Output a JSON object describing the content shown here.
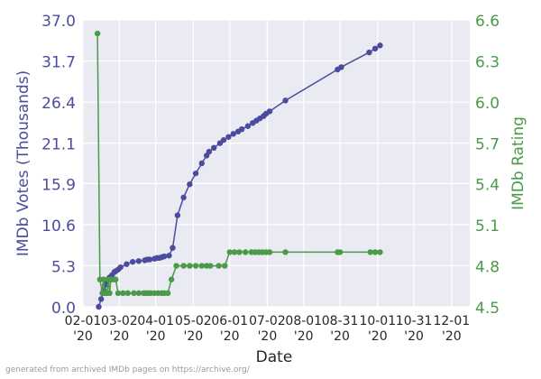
{
  "chart_data": {
    "type": "line",
    "xlabel": "Date",
    "ylabel_left": "IMDb Votes (Thousands)",
    "ylabel_right": "IMDb Rating",
    "x_range": [
      "2020-02-01",
      "2020-12-16"
    ],
    "y_left_range": [
      0.0,
      37.0
    ],
    "y_right_range": [
      4.5,
      6.6
    ],
    "y_left_ticks": [
      "0.0",
      "5.3",
      "10.6",
      "15.9",
      "21.1",
      "26.4",
      "31.7",
      "37.0"
    ],
    "y_right_ticks": [
      "4.5",
      "4.8",
      "5.1",
      "5.4",
      "5.7",
      "6.0",
      "6.3",
      "6.6"
    ],
    "x_ticks": [
      {
        "date": "2020-02-01",
        "label": "02-01",
        "year": "'20"
      },
      {
        "date": "2020-03-02",
        "label": "03-02",
        "year": "'20"
      },
      {
        "date": "2020-04-01",
        "label": "04-01",
        "year": "'20"
      },
      {
        "date": "2020-05-02",
        "label": "05-02",
        "year": "'20"
      },
      {
        "date": "2020-06-01",
        "label": "06-01",
        "year": "'20"
      },
      {
        "date": "2020-07-02",
        "label": "07-02",
        "year": "'20"
      },
      {
        "date": "2020-08-01",
        "label": "08-01",
        "year": "'20"
      },
      {
        "date": "2020-08-31",
        "label": "08-31",
        "year": "'20"
      },
      {
        "date": "2020-10-01",
        "label": "10-01",
        "year": "'20"
      },
      {
        "date": "2020-10-31",
        "label": "10-31",
        "year": "'20"
      },
      {
        "date": "2020-12-01",
        "label": "12-01",
        "year": "'20"
      }
    ],
    "grid": true,
    "series": [
      {
        "name": "IMDb Votes (Thousands)",
        "axis": "left",
        "color": "#4c4c9e",
        "points": [
          [
            "2020-02-14",
            0.0
          ],
          [
            "2020-02-16",
            1.0
          ],
          [
            "2020-02-18",
            2.2
          ],
          [
            "2020-02-19",
            2.8
          ],
          [
            "2020-02-20",
            2.9
          ],
          [
            "2020-02-21",
            3.3
          ],
          [
            "2020-02-22",
            3.6
          ],
          [
            "2020-02-23",
            3.8
          ],
          [
            "2020-02-25",
            4.1
          ],
          [
            "2020-02-27",
            4.5
          ],
          [
            "2020-02-28",
            4.6
          ],
          [
            "2020-03-01",
            4.8
          ],
          [
            "2020-03-03",
            5.1
          ],
          [
            "2020-03-08",
            5.5
          ],
          [
            "2020-03-13",
            5.8
          ],
          [
            "2020-03-18",
            5.9
          ],
          [
            "2020-03-23",
            6.0
          ],
          [
            "2020-03-25",
            6.1
          ],
          [
            "2020-03-27",
            6.1
          ],
          [
            "2020-03-31",
            6.2
          ],
          [
            "2020-04-02",
            6.3
          ],
          [
            "2020-04-04",
            6.3
          ],
          [
            "2020-04-06",
            6.4
          ],
          [
            "2020-04-08",
            6.5
          ],
          [
            "2020-04-12",
            6.6
          ],
          [
            "2020-04-15",
            7.6
          ],
          [
            "2020-04-19",
            11.8
          ],
          [
            "2020-04-24",
            14.1
          ],
          [
            "2020-04-29",
            15.8
          ],
          [
            "2020-05-04",
            17.2
          ],
          [
            "2020-05-09",
            18.5
          ],
          [
            "2020-05-13",
            19.5
          ],
          [
            "2020-05-15",
            20.0
          ],
          [
            "2020-05-19",
            20.5
          ],
          [
            "2020-05-24",
            21.1
          ],
          [
            "2020-05-27",
            21.5
          ],
          [
            "2020-05-31",
            21.9
          ],
          [
            "2020-06-04",
            22.3
          ],
          [
            "2020-06-08",
            22.6
          ],
          [
            "2020-06-11",
            22.9
          ],
          [
            "2020-06-16",
            23.3
          ],
          [
            "2020-06-20",
            23.7
          ],
          [
            "2020-06-23",
            24.0
          ],
          [
            "2020-06-26",
            24.3
          ],
          [
            "2020-06-29",
            24.6
          ],
          [
            "2020-07-01",
            24.9
          ],
          [
            "2020-07-04",
            25.2
          ],
          [
            "2020-07-17",
            26.6
          ],
          [
            "2020-08-29",
            30.6
          ],
          [
            "2020-09-01",
            30.9
          ],
          [
            "2020-09-24",
            32.8
          ],
          [
            "2020-09-29",
            33.3
          ],
          [
            "2020-10-03",
            33.7
          ]
        ]
      },
      {
        "name": "IMDb Rating",
        "axis": "right",
        "color": "#4a9a4a",
        "points": [
          [
            "2020-02-13",
            6.5
          ],
          [
            "2020-02-15",
            4.7
          ],
          [
            "2020-02-17",
            4.6
          ],
          [
            "2020-02-18",
            4.7
          ],
          [
            "2020-02-19",
            4.6
          ],
          [
            "2020-02-20",
            4.6
          ],
          [
            "2020-02-21",
            4.6
          ],
          [
            "2020-02-22",
            4.7
          ],
          [
            "2020-02-23",
            4.6
          ],
          [
            "2020-02-24",
            4.7
          ],
          [
            "2020-02-26",
            4.7
          ],
          [
            "2020-02-28",
            4.7
          ],
          [
            "2020-03-01",
            4.6
          ],
          [
            "2020-03-05",
            4.6
          ],
          [
            "2020-03-09",
            4.6
          ],
          [
            "2020-03-14",
            4.6
          ],
          [
            "2020-03-18",
            4.6
          ],
          [
            "2020-03-22",
            4.6
          ],
          [
            "2020-03-24",
            4.6
          ],
          [
            "2020-03-26",
            4.6
          ],
          [
            "2020-03-28",
            4.6
          ],
          [
            "2020-03-31",
            4.6
          ],
          [
            "2020-04-03",
            4.6
          ],
          [
            "2020-04-06",
            4.6
          ],
          [
            "2020-04-08",
            4.6
          ],
          [
            "2020-04-11",
            4.6
          ],
          [
            "2020-04-14",
            4.7
          ],
          [
            "2020-04-18",
            4.8
          ],
          [
            "2020-04-24",
            4.8
          ],
          [
            "2020-04-29",
            4.8
          ],
          [
            "2020-05-04",
            4.8
          ],
          [
            "2020-05-09",
            4.8
          ],
          [
            "2020-05-13",
            4.8
          ],
          [
            "2020-05-16",
            4.8
          ],
          [
            "2020-05-23",
            4.8
          ],
          [
            "2020-05-28",
            4.8
          ],
          [
            "2020-06-01",
            4.9
          ],
          [
            "2020-06-05",
            4.9
          ],
          [
            "2020-06-09",
            4.9
          ],
          [
            "2020-06-14",
            4.9
          ],
          [
            "2020-06-19",
            4.9
          ],
          [
            "2020-06-22",
            4.9
          ],
          [
            "2020-06-25",
            4.9
          ],
          [
            "2020-06-28",
            4.9
          ],
          [
            "2020-07-01",
            4.9
          ],
          [
            "2020-07-04",
            4.9
          ],
          [
            "2020-07-17",
            4.9
          ],
          [
            "2020-08-29",
            4.9
          ],
          [
            "2020-08-31",
            4.9
          ],
          [
            "2020-09-25",
            4.9
          ],
          [
            "2020-09-29",
            4.9
          ],
          [
            "2020-10-03",
            4.9
          ]
        ]
      }
    ]
  },
  "footer_note": "generated from archived IMDb pages on https://archive.org/"
}
